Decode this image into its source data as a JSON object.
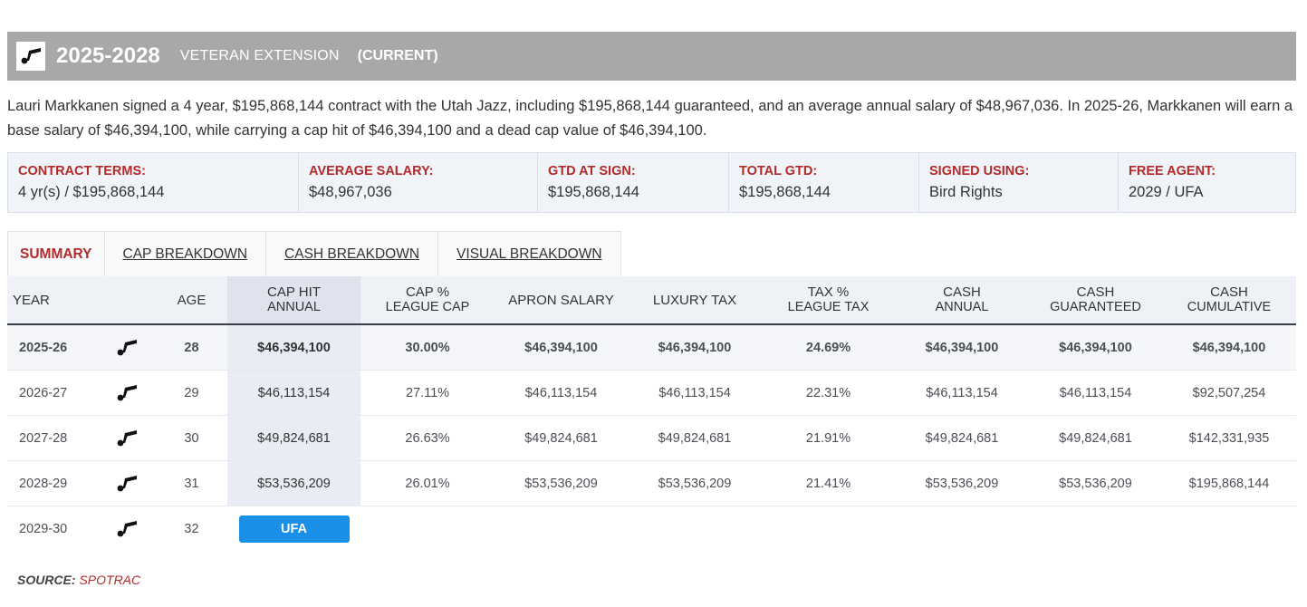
{
  "header": {
    "years": "2025-2028",
    "type": "VETERAN EXTENSION",
    "status": "(CURRENT)",
    "logo_icon": "jazz-note-icon",
    "bar_color": "#a8a8a8"
  },
  "summary_text": "Lauri Markkanen signed a 4 year, $195,868,144 contract with the Utah Jazz, including $195,868,144 guaranteed, and an average annual salary of $48,967,036. In 2025-26, Markkanen will earn a base salary of $46,394,100, while carrying a cap hit of $46,394,100 and a dead cap value of $46,394,100.",
  "terms": [
    {
      "label": "CONTRACT TERMS:",
      "value": "4 yr(s) / $195,868,144"
    },
    {
      "label": "AVERAGE SALARY:",
      "value": "$48,967,036"
    },
    {
      "label": "GTD AT SIGN:",
      "value": "$195,868,144"
    },
    {
      "label": "TOTAL GTD:",
      "value": "$195,868,144"
    },
    {
      "label": "SIGNED USING:",
      "value": "Bird Rights"
    },
    {
      "label": "FREE AGENT:",
      "value": "2029 / UFA"
    }
  ],
  "tabs": [
    {
      "label": "SUMMARY",
      "active": true
    },
    {
      "label": "CAP BREAKDOWN",
      "active": false
    },
    {
      "label": "CASH BREAKDOWN",
      "active": false
    },
    {
      "label": "VISUAL BREAKDOWN",
      "active": false
    }
  ],
  "table": {
    "headers": [
      {
        "l1": "YEAR",
        "l2": ""
      },
      {
        "l1": "",
        "l2": ""
      },
      {
        "l1": "AGE",
        "l2": ""
      },
      {
        "l1": "CAP HIT",
        "l2": "ANNUAL"
      },
      {
        "l1": "CAP %",
        "l2": "LEAGUE CAP"
      },
      {
        "l1": "APRON SALARY",
        "l2": ""
      },
      {
        "l1": "LUXURY TAX",
        "l2": ""
      },
      {
        "l1": "TAX %",
        "l2": "LEAGUE TAX"
      },
      {
        "l1": "CASH",
        "l2": "ANNUAL"
      },
      {
        "l1": "CASH",
        "l2": "GUARANTEED"
      },
      {
        "l1": "CASH",
        "l2": "CUMULATIVE"
      }
    ],
    "rows": [
      {
        "year": "2025-26",
        "age": "28",
        "cap_hit": "$46,394,100",
        "cap_pct": "30.00%",
        "apron": "$46,394,100",
        "lux_tax": "$46,394,100",
        "tax_pct": "24.69%",
        "cash_annual": "$46,394,100",
        "cash_gtd": "$46,394,100",
        "cash_cum": "$46,394,100"
      },
      {
        "year": "2026-27",
        "age": "29",
        "cap_hit": "$46,113,154",
        "cap_pct": "27.11%",
        "apron": "$46,113,154",
        "lux_tax": "$46,113,154",
        "tax_pct": "22.31%",
        "cash_annual": "$46,113,154",
        "cash_gtd": "$46,113,154",
        "cash_cum": "$92,507,254"
      },
      {
        "year": "2027-28",
        "age": "30",
        "cap_hit": "$49,824,681",
        "cap_pct": "26.63%",
        "apron": "$49,824,681",
        "lux_tax": "$49,824,681",
        "tax_pct": "21.91%",
        "cash_annual": "$49,824,681",
        "cash_gtd": "$49,824,681",
        "cash_cum": "$142,331,935"
      },
      {
        "year": "2028-29",
        "age": "31",
        "cap_hit": "$53,536,209",
        "cap_pct": "26.01%",
        "apron": "$53,536,209",
        "lux_tax": "$53,536,209",
        "tax_pct": "21.41%",
        "cash_annual": "$53,536,209",
        "cash_gtd": "$53,536,209",
        "cash_cum": "$195,868,144"
      }
    ],
    "ufa_row": {
      "year": "2029-30",
      "age": "32",
      "badge": "UFA",
      "badge_color": "#1a8fe8"
    },
    "team_icon": "jazz-note-icon"
  },
  "source": {
    "label": "SOURCE:",
    "value": "SPOTRAC"
  },
  "colors": {
    "accent_red": "#b22a2a",
    "ufa_blue": "#1a8fe8"
  }
}
